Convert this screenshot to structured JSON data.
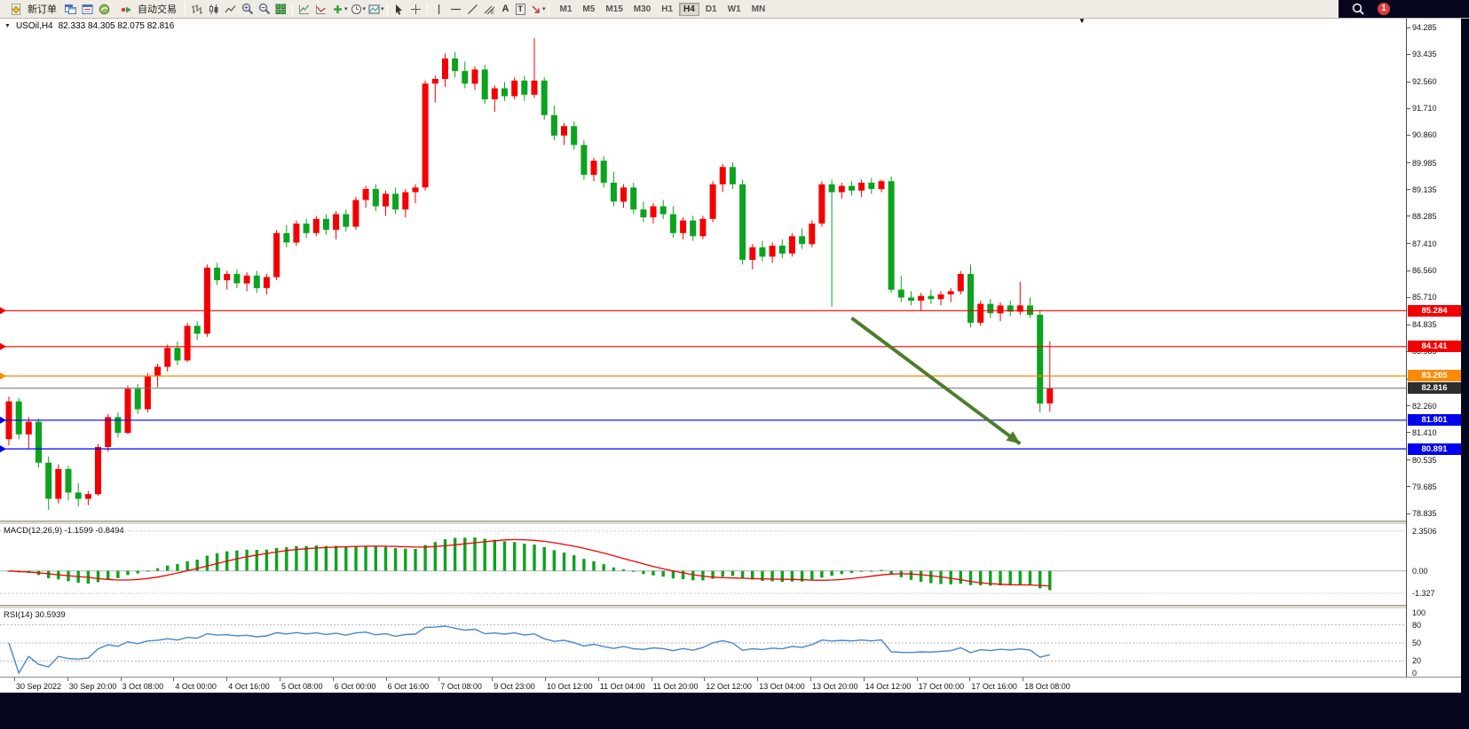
{
  "icons": {
    "collapse_triangle": "▼",
    "shift_marker": "▼",
    "caret": "▾"
  },
  "toolbar": {
    "new_order_label": "新订单",
    "autotrading_label": "自动交易",
    "letters": {
      "text_tool": "A",
      "label_tool": "T"
    },
    "timeframes": [
      "M1",
      "M5",
      "M15",
      "M30",
      "H1",
      "H4",
      "D1",
      "W1",
      "MN"
    ],
    "active_timeframe": "H4",
    "notification_count": "1"
  },
  "chart_data": {
    "type": "candlestick",
    "symbol_period": "USOil,H4",
    "ohlc_text": "82.333 84.305 82.075 82.816",
    "price_max": 94.285,
    "price_min": 78.835,
    "price_axis_ticks": [
      "94.285",
      "93.435",
      "92.560",
      "91.710",
      "90.860",
      "89.985",
      "89.135",
      "88.285",
      "87.410",
      "86.560",
      "85.710",
      "84.835",
      "83.985",
      "83.110",
      "82.260",
      "81.410",
      "80.535",
      "79.685",
      "78.835"
    ],
    "x_labels": [
      "30 Sep 2022",
      "30 Sep 20:00",
      "3 Oct 08:00",
      "4 Oct 00:00",
      "4 Oct 16:00",
      "5 Oct 08:00",
      "6 Oct 00:00",
      "6 Oct 16:00",
      "7 Oct 08:00",
      "9 Oct 23:00",
      "10 Oct 12:00",
      "11 Oct 04:00",
      "11 Oct 20:00",
      "12 Oct 12:00",
      "13 Oct 04:00",
      "13 Oct 20:00",
      "14 Oct 12:00",
      "17 Oct 00:00",
      "17 Oct 16:00",
      "18 Oct 08:00"
    ],
    "colors": {
      "bull": "#f40000",
      "bear": "#0ca31e",
      "macd_hist": "#0ca31e",
      "macd_signal": "#f40000",
      "rsi_line": "#4a86c8",
      "arrow": "#4e7d28",
      "current_line": "#6e6e6e",
      "current_badge": "#2e2e2e"
    },
    "candles": [
      [
        81.2,
        82.55,
        81.0,
        82.4
      ],
      [
        82.4,
        82.5,
        81.2,
        81.35
      ],
      [
        81.35,
        81.9,
        80.9,
        81.75
      ],
      [
        81.75,
        81.85,
        80.3,
        80.45
      ],
      [
        80.45,
        80.65,
        78.95,
        79.3
      ],
      [
        79.3,
        80.4,
        79.15,
        80.25
      ],
      [
        80.25,
        80.35,
        79.25,
        79.5
      ],
      [
        79.5,
        79.8,
        79.05,
        79.3
      ],
      [
        79.3,
        79.55,
        79.1,
        79.45
      ],
      [
        79.45,
        81.05,
        79.4,
        80.95
      ],
      [
        80.95,
        82.0,
        80.8,
        81.9
      ],
      [
        81.9,
        82.05,
        81.25,
        81.4
      ],
      [
        81.4,
        82.9,
        81.35,
        82.8
      ],
      [
        82.8,
        82.95,
        82.0,
        82.15
      ],
      [
        82.15,
        83.3,
        82.05,
        83.2
      ],
      [
        83.2,
        83.6,
        82.85,
        83.5
      ],
      [
        83.5,
        84.2,
        83.35,
        84.1
      ],
      [
        84.1,
        84.3,
        83.55,
        83.7
      ],
      [
        83.7,
        84.9,
        83.65,
        84.8
      ],
      [
        84.8,
        84.95,
        84.35,
        84.55
      ],
      [
        84.55,
        86.75,
        84.45,
        86.65
      ],
      [
        86.65,
        86.8,
        86.1,
        86.25
      ],
      [
        86.25,
        86.55,
        85.95,
        86.45
      ],
      [
        86.45,
        86.6,
        86.0,
        86.15
      ],
      [
        86.15,
        86.5,
        85.9,
        86.4
      ],
      [
        86.4,
        86.55,
        85.85,
        86.0
      ],
      [
        86.0,
        86.45,
        85.8,
        86.35
      ],
      [
        86.35,
        87.85,
        86.25,
        87.75
      ],
      [
        87.75,
        88.0,
        87.3,
        87.45
      ],
      [
        87.45,
        88.15,
        87.35,
        88.05
      ],
      [
        88.05,
        88.2,
        87.6,
        87.75
      ],
      [
        87.75,
        88.3,
        87.65,
        88.2
      ],
      [
        88.2,
        88.35,
        87.7,
        87.85
      ],
      [
        87.85,
        88.45,
        87.55,
        88.35
      ],
      [
        88.35,
        88.5,
        87.8,
        87.95
      ],
      [
        87.95,
        88.9,
        87.85,
        88.8
      ],
      [
        88.8,
        89.25,
        88.55,
        89.15
      ],
      [
        89.15,
        89.3,
        88.45,
        88.6
      ],
      [
        88.6,
        89.1,
        88.3,
        89.0
      ],
      [
        89.0,
        89.2,
        88.35,
        88.5
      ],
      [
        88.5,
        89.15,
        88.25,
        89.05
      ],
      [
        89.05,
        89.3,
        88.7,
        89.2
      ],
      [
        89.2,
        92.6,
        89.1,
        92.5
      ],
      [
        92.5,
        92.75,
        91.9,
        92.65
      ],
      [
        92.65,
        93.45,
        92.4,
        93.3
      ],
      [
        93.3,
        93.5,
        92.7,
        92.9
      ],
      [
        92.9,
        93.2,
        92.35,
        92.5
      ],
      [
        92.5,
        93.05,
        92.3,
        92.95
      ],
      [
        92.95,
        93.1,
        91.85,
        92.0
      ],
      [
        92.0,
        92.45,
        91.6,
        92.35
      ],
      [
        92.35,
        92.55,
        91.95,
        92.1
      ],
      [
        92.1,
        92.7,
        92.0,
        92.6
      ],
      [
        92.6,
        92.75,
        91.95,
        92.15
      ],
      [
        92.15,
        93.95,
        92.05,
        92.6
      ],
      [
        92.6,
        92.7,
        91.35,
        91.5
      ],
      [
        91.5,
        91.8,
        90.7,
        90.85
      ],
      [
        90.85,
        91.25,
        90.55,
        91.15
      ],
      [
        91.15,
        91.3,
        90.4,
        90.55
      ],
      [
        90.55,
        90.7,
        89.45,
        89.6
      ],
      [
        89.6,
        90.15,
        89.4,
        90.05
      ],
      [
        90.05,
        90.2,
        89.2,
        89.35
      ],
      [
        89.35,
        89.7,
        88.6,
        88.75
      ],
      [
        88.75,
        89.3,
        88.55,
        89.2
      ],
      [
        89.2,
        89.35,
        88.35,
        88.5
      ],
      [
        88.5,
        88.75,
        88.1,
        88.25
      ],
      [
        88.25,
        88.7,
        88.05,
        88.6
      ],
      [
        88.6,
        88.8,
        88.2,
        88.35
      ],
      [
        88.35,
        88.6,
        87.6,
        87.75
      ],
      [
        87.75,
        88.25,
        87.55,
        88.15
      ],
      [
        88.15,
        88.3,
        87.5,
        87.65
      ],
      [
        87.65,
        88.3,
        87.55,
        88.2
      ],
      [
        88.2,
        89.4,
        88.1,
        89.3
      ],
      [
        89.3,
        89.95,
        89.05,
        89.85
      ],
      [
        89.85,
        90.0,
        89.15,
        89.3
      ],
      [
        89.3,
        89.45,
        86.75,
        86.9
      ],
      [
        86.9,
        87.4,
        86.6,
        87.3
      ],
      [
        87.3,
        87.5,
        86.85,
        87.0
      ],
      [
        87.0,
        87.45,
        86.8,
        87.35
      ],
      [
        87.35,
        87.55,
        86.95,
        87.1
      ],
      [
        87.1,
        87.75,
        87.0,
        87.65
      ],
      [
        87.65,
        87.9,
        87.25,
        87.4
      ],
      [
        87.4,
        88.15,
        87.3,
        88.05
      ],
      [
        88.05,
        89.4,
        87.95,
        89.3
      ],
      [
        89.3,
        89.45,
        85.4,
        89.05
      ],
      [
        89.05,
        89.35,
        88.85,
        89.25
      ],
      [
        89.25,
        89.4,
        88.95,
        89.1
      ],
      [
        89.1,
        89.45,
        88.9,
        89.35
      ],
      [
        89.35,
        89.5,
        89.0,
        89.15
      ],
      [
        89.15,
        89.45,
        89.05,
        89.4
      ],
      [
        89.4,
        89.55,
        85.85,
        85.95
      ],
      [
        85.95,
        86.4,
        85.55,
        85.7
      ],
      [
        85.7,
        85.9,
        85.45,
        85.6
      ],
      [
        85.6,
        85.85,
        85.3,
        85.75
      ],
      [
        85.75,
        85.95,
        85.5,
        85.65
      ],
      [
        85.65,
        85.9,
        85.45,
        85.8
      ],
      [
        85.8,
        86.0,
        85.55,
        85.9
      ],
      [
        85.9,
        86.55,
        85.8,
        86.45
      ],
      [
        86.45,
        86.75,
        84.75,
        84.9
      ],
      [
        84.9,
        85.6,
        84.8,
        85.5
      ],
      [
        85.5,
        85.65,
        85.05,
        85.2
      ],
      [
        85.2,
        85.55,
        84.95,
        85.45
      ],
      [
        85.45,
        85.6,
        85.1,
        85.25
      ],
      [
        85.25,
        86.2,
        85.15,
        85.45
      ],
      [
        85.45,
        85.7,
        85.05,
        85.15
      ],
      [
        85.15,
        85.3,
        82.05,
        82.33
      ],
      [
        82.333,
        84.305,
        82.075,
        82.816
      ]
    ],
    "hlines": [
      {
        "price": 85.284,
        "label": "85.284",
        "color": "#f40000"
      },
      {
        "price": 84.141,
        "label": "84.141",
        "color": "#f40000"
      },
      {
        "price": 83.205,
        "label": "83.205",
        "color": "#ff8a00"
      },
      {
        "price": 81.801,
        "label": "81.801",
        "color": "#0000f0"
      },
      {
        "price": 80.891,
        "label": "80.891",
        "color": "#0000f0"
      }
    ],
    "current_price": {
      "price": 82.816,
      "label": "82.816"
    },
    "arrow": {
      "from_index": 85,
      "from_price": 85.05,
      "to_index": 102,
      "to_price": 81.05
    },
    "indicators": {
      "macd": {
        "label": "MACD(12,26,9) -1.1599 -0.8494",
        "fast": 12,
        "slow": 26,
        "signal": 9,
        "axis_values": [
          {
            "v": 2.3506,
            "label": "2.3506"
          },
          {
            "v": 0,
            "label": "0.00"
          },
          {
            "v": -1.327,
            "label": "-1.327"
          }
        ]
      },
      "rsi": {
        "label": "RSI(14) 30.5939",
        "period": 14,
        "levels": [
          80,
          50,
          20
        ],
        "axis_values": [
          {
            "v": 100,
            "label": "100"
          },
          {
            "v": 80,
            "label": "80"
          },
          {
            "v": 50,
            "label": "50"
          },
          {
            "v": 20,
            "label": "20"
          },
          {
            "v": 0,
            "label": "0"
          }
        ]
      }
    }
  }
}
